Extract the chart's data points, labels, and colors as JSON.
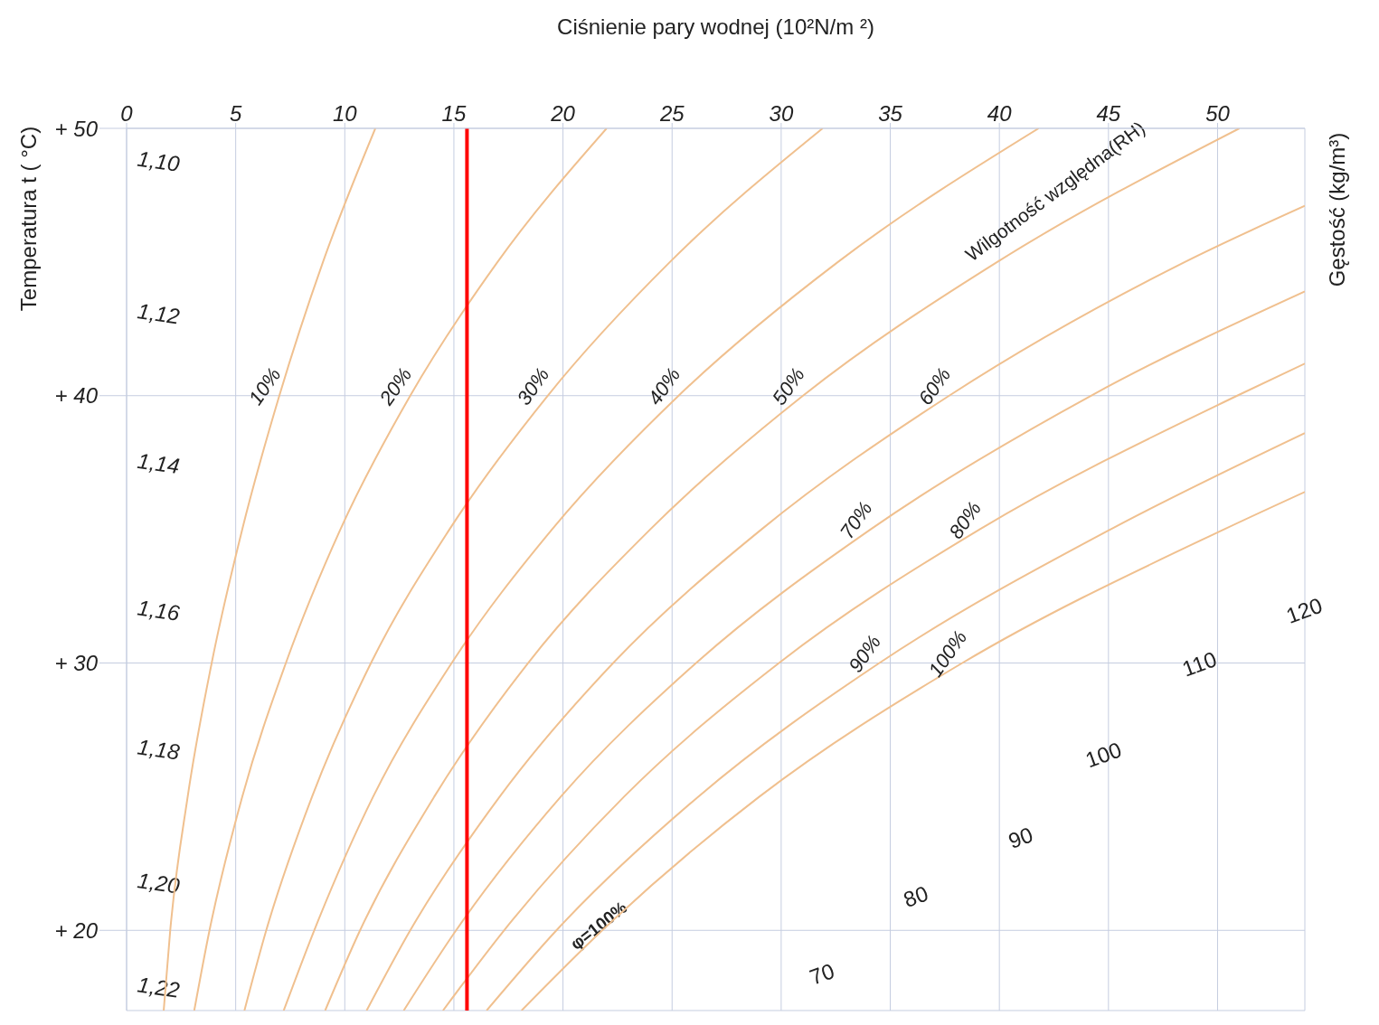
{
  "chart_data": {
    "type": "line",
    "xlabel": "Ciśnienie pary wodnej (10²N/m ²)",
    "ylabel": "Temperatura  t ( °C)",
    "y2label": "Gęstość (kg/m³)",
    "xlim": [
      0,
      54
    ],
    "xticks": [
      0,
      5,
      10,
      15,
      20,
      25,
      30,
      35,
      40,
      45,
      50
    ],
    "ylim": [
      17,
      50
    ],
    "yticks": [
      {
        "value": 20,
        "label": "+ 20"
      },
      {
        "value": 30,
        "label": "+ 30"
      },
      {
        "value": 40,
        "label": "+ 40"
      },
      {
        "value": 50,
        "label": "+ 50"
      }
    ],
    "grid": true,
    "marker": "none",
    "line_style": "solid",
    "series": [
      {
        "name": "10%",
        "color": "#f0c08f",
        "x": [
          1.7,
          2.0,
          2.8,
          3.9,
          5.3,
          7.0,
          9.0,
          11.4
        ],
        "values": [
          17,
          20,
          25,
          30,
          35,
          40,
          45,
          50
        ]
      },
      {
        "name": "20%",
        "color": "#f0c08f",
        "x": [
          3.1,
          3.8,
          5.3,
          7.3,
          9.8,
          13.0,
          17.0,
          22.0
        ],
        "values": [
          17,
          20,
          25,
          30,
          35,
          40,
          45,
          50
        ]
      },
      {
        "name": "30%",
        "color": "#f0c08f",
        "x": [
          5.4,
          6.4,
          8.5,
          11.2,
          14.8,
          19.3,
          24.9,
          31.9
        ],
        "values": [
          17,
          20,
          25,
          30,
          35,
          40,
          45,
          50
        ]
      },
      {
        "name": "40%",
        "color": "#f0c08f",
        "x": [
          7.2,
          8.6,
          11.3,
          14.9,
          19.5,
          25.3,
          32.6,
          41.8
        ],
        "values": [
          17,
          20,
          25,
          30,
          35,
          40,
          45,
          50
        ]
      },
      {
        "name": "50%",
        "color": "#f0c08f",
        "x": [
          9.1,
          10.7,
          14.1,
          18.4,
          24.0,
          31.0,
          39.9,
          51.0
        ],
        "values": [
          17,
          20,
          25,
          30,
          35,
          40,
          45,
          50
        ]
      },
      {
        "name": "60%",
        "color": "#f0c08f",
        "x": [
          11.0,
          13.0,
          17.1,
          22.3,
          29.1,
          37.7,
          48.5,
          54
        ],
        "values": [
          17,
          20,
          25,
          30,
          35,
          40,
          45,
          47.1
        ]
      },
      {
        "name": "70%",
        "color": "#f0c08f",
        "x": [
          12.7,
          15.1,
          19.9,
          26.1,
          34.1,
          44.2,
          54
        ],
        "values": [
          17,
          20,
          25,
          30,
          35,
          40,
          43.9
        ]
      },
      {
        "name": "80%",
        "color": "#f0c08f",
        "x": [
          14.5,
          17.3,
          22.8,
          29.9,
          39.1,
          50.9,
          54
        ],
        "values": [
          17,
          20,
          25,
          30,
          35,
          40,
          41.2
        ]
      },
      {
        "name": "90%",
        "color": "#f0c08f",
        "x": [
          16.5,
          19.7,
          26.2,
          34.5,
          45.1,
          54
        ],
        "values": [
          17,
          20,
          25,
          30,
          35,
          38.6
        ]
      },
      {
        "name": "100%",
        "color": "#f0c08f",
        "x": [
          18.1,
          21.8,
          29.0,
          38.3,
          50.3,
          54
        ],
        "values": [
          17,
          20,
          25,
          30,
          35,
          36.4
        ]
      }
    ],
    "ref_lines": [
      {
        "axis": "x",
        "value": 15.6,
        "color": "#ff0000"
      }
    ],
    "annotations": [
      "Wilgotność względna(RH)",
      "1,10",
      "1,12",
      "1,14",
      "1,16",
      "1,18",
      "1,20",
      "1,22",
      "70",
      "80",
      "90",
      "100",
      "110",
      "120",
      {
        "text": "φ=100%",
        "x": 21.8,
        "y": 20
      }
    ]
  }
}
